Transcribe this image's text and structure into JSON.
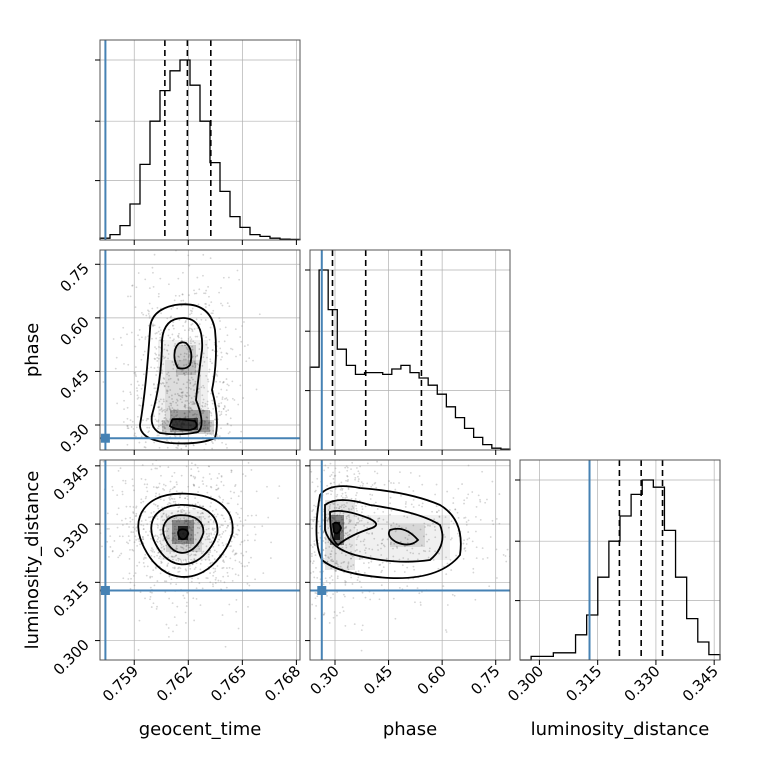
{
  "chart_data": {
    "type": "corner",
    "parameters": [
      "geocent_time",
      "phase",
      "luminosity_distance"
    ],
    "injection": {
      "geocent_time": 0.7574,
      "phase": 0.263,
      "luminosity_distance": 0.3129
    },
    "quantiles": {
      "geocent_time": [
        0.7607,
        0.76195,
        0.76325
      ],
      "phase": [
        0.293,
        0.386,
        0.542
      ],
      "luminosity_distance": [
        0.3206,
        0.3262,
        0.3317
      ]
    },
    "ranges": {
      "geocent_time": [
        0.7571,
        0.7682
      ],
      "phase": [
        0.23,
        0.79
      ],
      "luminosity_distance": [
        0.295,
        0.3465
      ]
    },
    "ticks": {
      "geocent_time": [
        "0.759",
        "0.762",
        "0.765",
        "0.768"
      ],
      "phase": [
        "0.30",
        "0.45",
        "0.60",
        "0.75"
      ],
      "luminosity_distance": [
        "0.300",
        "0.315",
        "0.330",
        "0.345"
      ]
    },
    "histograms": {
      "geocent_time": {
        "counts": [
          0.01,
          0.03,
          0.08,
          0.2,
          0.42,
          0.66,
          0.83,
          0.94,
          1.0,
          0.86,
          0.66,
          0.43,
          0.27,
          0.13,
          0.07,
          0.03,
          0.02,
          0.01,
          0.005,
          0.003
        ]
      },
      "phase": {
        "counts": [
          0.46,
          1.0,
          0.78,
          0.56,
          0.47,
          0.42,
          0.43,
          0.43,
          0.42,
          0.45,
          0.47,
          0.43,
          0.4,
          0.36,
          0.31,
          0.24,
          0.18,
          0.12,
          0.07,
          0.03,
          0.01,
          0.005
        ]
      },
      "luminosity_distance": {
        "counts": [
          0.0,
          0.02,
          0.02,
          0.04,
          0.04,
          0.14,
          0.25,
          0.46,
          0.66,
          0.8,
          0.92,
          1.0,
          0.96,
          0.72,
          0.46,
          0.23,
          0.1,
          0.03
        ]
      }
    },
    "contour_levels": [
      "0.5σ",
      "1σ",
      "1.5σ",
      "2σ"
    ],
    "grid": true,
    "colors": {
      "injection": "#4682b4",
      "line": "#000000",
      "scatter": "#888888",
      "grid": "#b0b0b0"
    }
  }
}
